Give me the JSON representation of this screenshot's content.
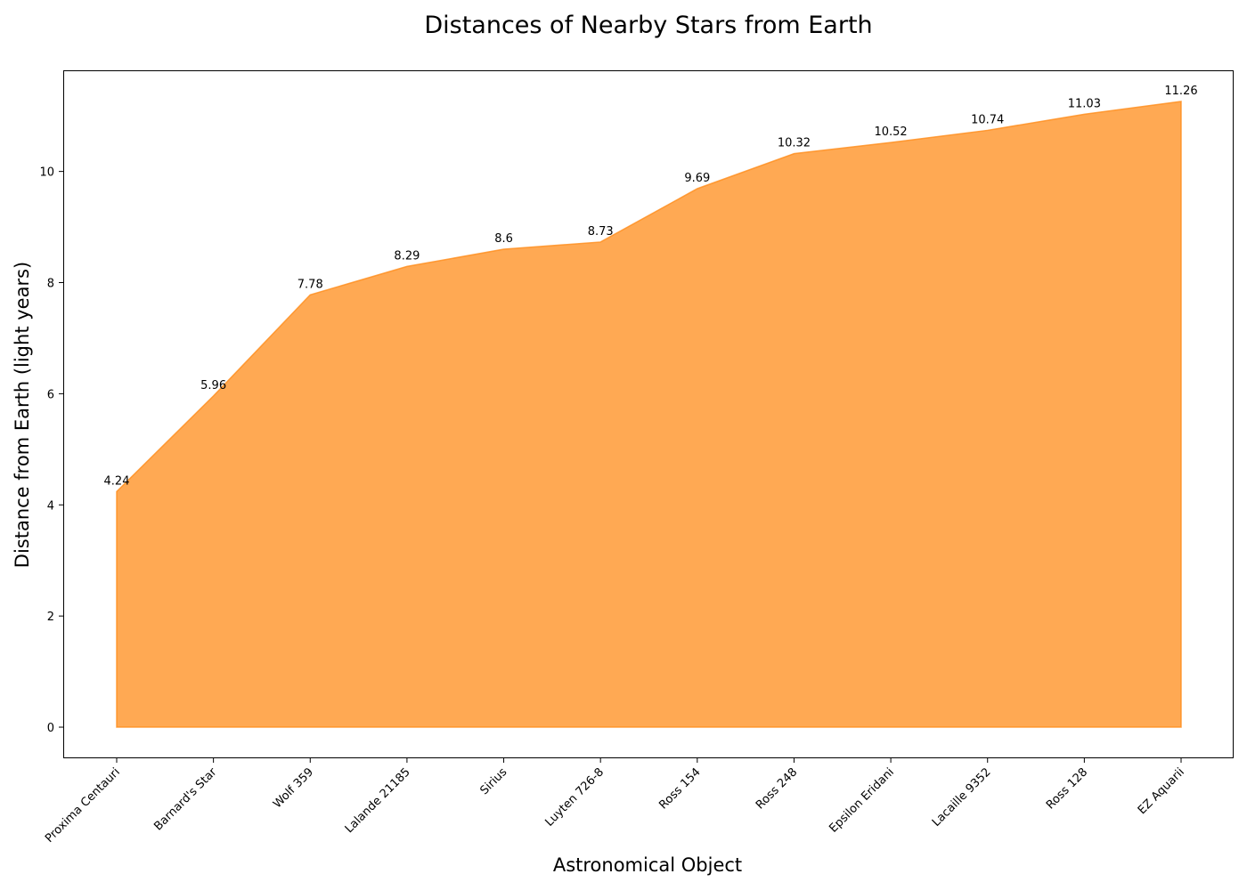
{
  "chart_data": {
    "type": "area",
    "title": "Distances of Nearby Stars from Earth",
    "xlabel": "Astronomical Object",
    "ylabel": "Distance from Earth (light years)",
    "categories": [
      "Proxima Centauri",
      "Barnard's Star",
      "Wolf 359",
      "Lalande 21185",
      "Sirius",
      "Luyten 726-8",
      "Ross 154",
      "Ross 248",
      "Epsilon Eridani",
      "Lacaille 9352",
      "Ross 128",
      "EZ Aquarii"
    ],
    "values": [
      4.24,
      5.96,
      7.78,
      8.29,
      8.6,
      8.73,
      9.69,
      10.32,
      10.52,
      10.74,
      11.03,
      11.26
    ],
    "data_labels": [
      "4.24",
      "5.96",
      "7.78",
      "8.29",
      "8.6",
      "8.73",
      "9.69",
      "10.32",
      "10.52",
      "10.74",
      "11.03",
      "11.26"
    ],
    "yticks": [
      0,
      2,
      4,
      6,
      8,
      10
    ],
    "ytick_labels": [
      "0",
      "2",
      "4",
      "6",
      "8",
      "10"
    ],
    "ylim": [
      -0.56,
      11.82
    ],
    "grid": false,
    "colors": {
      "fill": "#ff8c1a",
      "fill_opacity": 0.75,
      "line": "#ff8c1a"
    }
  }
}
